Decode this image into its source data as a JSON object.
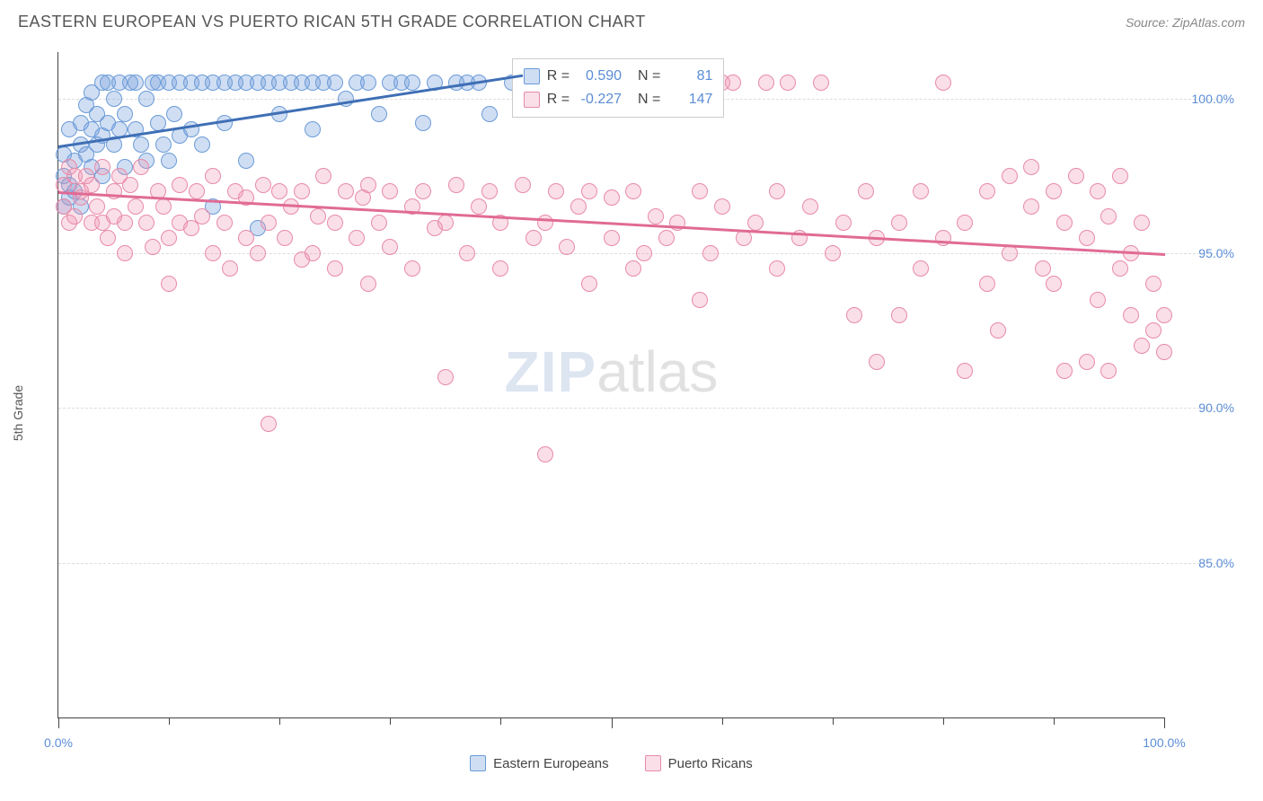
{
  "header": {
    "title": "EASTERN EUROPEAN VS PUERTO RICAN 5TH GRADE CORRELATION CHART",
    "source": "Source: ZipAtlas.com"
  },
  "ylabel": "5th Grade",
  "watermark": {
    "part1": "ZIP",
    "part2": "atlas"
  },
  "chart": {
    "type": "scatter",
    "xlim": [
      0,
      100
    ],
    "ylim": [
      80,
      101.5
    ],
    "background_color": "#ffffff",
    "grid_color": "#dddddd",
    "axis_color": "#444444",
    "label_color": "#5b8dd6",
    "yticks": [
      {
        "v": 85,
        "label": "85.0%"
      },
      {
        "v": 90,
        "label": "90.0%"
      },
      {
        "v": 95,
        "label": "95.0%"
      },
      {
        "v": 100,
        "label": "100.0%"
      }
    ],
    "xticks_major": [
      0,
      50,
      100
    ],
    "xticks_minor": [
      10,
      20,
      30,
      40,
      60,
      70,
      80,
      90
    ],
    "xlabels": [
      {
        "v": 0,
        "label": "0.0%"
      },
      {
        "v": 100,
        "label": "100.0%"
      }
    ],
    "marker_radius": 9,
    "series": [
      {
        "id": "ee",
        "name": "Eastern Europeans",
        "fill": "rgba(120,160,220,0.35)",
        "stroke": "#6a9bd8",
        "trend_color": "#3f6fb5",
        "R": "0.590",
        "N": "81",
        "trend": {
          "x1": 0,
          "y1": 98.5,
          "x2": 42,
          "y2": 100.8
        },
        "points": [
          [
            0.5,
            96.5
          ],
          [
            0.5,
            98.2
          ],
          [
            0.5,
            97.5
          ],
          [
            1,
            96.8
          ],
          [
            1,
            97.2
          ],
          [
            1,
            99.0
          ],
          [
            1.5,
            98.0
          ],
          [
            1.5,
            97.0
          ],
          [
            2,
            98.5
          ],
          [
            2,
            99.2
          ],
          [
            2,
            96.5
          ],
          [
            2.5,
            99.8
          ],
          [
            2.5,
            98.2
          ],
          [
            3,
            99.0
          ],
          [
            3,
            97.8
          ],
          [
            3,
            100.2
          ],
          [
            3.5,
            98.5
          ],
          [
            3.5,
            99.5
          ],
          [
            4,
            100.5
          ],
          [
            4,
            98.8
          ],
          [
            4,
            97.5
          ],
          [
            4.5,
            100.5
          ],
          [
            4.5,
            99.2
          ],
          [
            5,
            98.5
          ],
          [
            5,
            100.0
          ],
          [
            5.5,
            99.0
          ],
          [
            5.5,
            100.5
          ],
          [
            6,
            97.8
          ],
          [
            6,
            99.5
          ],
          [
            6.5,
            100.5
          ],
          [
            7,
            99.0
          ],
          [
            7,
            100.5
          ],
          [
            7.5,
            98.5
          ],
          [
            8,
            100.0
          ],
          [
            8,
            98.0
          ],
          [
            8.5,
            100.5
          ],
          [
            9,
            99.2
          ],
          [
            9,
            100.5
          ],
          [
            9.5,
            98.5
          ],
          [
            10,
            100.5
          ],
          [
            10,
            98.0
          ],
          [
            10.5,
            99.5
          ],
          [
            11,
            100.5
          ],
          [
            11,
            98.8
          ],
          [
            12,
            100.5
          ],
          [
            12,
            99.0
          ],
          [
            13,
            98.5
          ],
          [
            13,
            100.5
          ],
          [
            14,
            96.5
          ],
          [
            14,
            100.5
          ],
          [
            15,
            99.2
          ],
          [
            15,
            100.5
          ],
          [
            16,
            100.5
          ],
          [
            17,
            98.0
          ],
          [
            17,
            100.5
          ],
          [
            18,
            95.8
          ],
          [
            18,
            100.5
          ],
          [
            19,
            100.5
          ],
          [
            20,
            99.5
          ],
          [
            20,
            100.5
          ],
          [
            21,
            100.5
          ],
          [
            22,
            100.5
          ],
          [
            23,
            99.0
          ],
          [
            23,
            100.5
          ],
          [
            24,
            100.5
          ],
          [
            25,
            100.5
          ],
          [
            26,
            100.0
          ],
          [
            27,
            100.5
          ],
          [
            28,
            100.5
          ],
          [
            29,
            99.5
          ],
          [
            30,
            100.5
          ],
          [
            31,
            100.5
          ],
          [
            32,
            100.5
          ],
          [
            33,
            99.2
          ],
          [
            34,
            100.5
          ],
          [
            36,
            100.5
          ],
          [
            37,
            100.5
          ],
          [
            38,
            100.5
          ],
          [
            39,
            99.5
          ],
          [
            41,
            100.5
          ],
          [
            42,
            100.5
          ]
        ]
      },
      {
        "id": "pr",
        "name": "Puerto Ricans",
        "fill": "rgba(240,150,180,0.30)",
        "stroke": "#e88aa8",
        "trend_color": "#e06b95",
        "R": "-0.227",
        "N": "147",
        "trend": {
          "x1": 0,
          "y1": 97.0,
          "x2": 100,
          "y2": 95.0
        },
        "points": [
          [
            0.5,
            97.2
          ],
          [
            0.5,
            96.5
          ],
          [
            1,
            97.8
          ],
          [
            1,
            96.0
          ],
          [
            1.5,
            97.5
          ],
          [
            1.5,
            96.2
          ],
          [
            2,
            97.0
          ],
          [
            2,
            96.8
          ],
          [
            2.5,
            97.5
          ],
          [
            3,
            96.0
          ],
          [
            3,
            97.2
          ],
          [
            3.5,
            96.5
          ],
          [
            4,
            97.8
          ],
          [
            4,
            96.0
          ],
          [
            4.5,
            95.5
          ],
          [
            5,
            97.0
          ],
          [
            5,
            96.2
          ],
          [
            5.5,
            97.5
          ],
          [
            6,
            96.0
          ],
          [
            6,
            95.0
          ],
          [
            6.5,
            97.2
          ],
          [
            7,
            96.5
          ],
          [
            7.5,
            97.8
          ],
          [
            8,
            96.0
          ],
          [
            8.5,
            95.2
          ],
          [
            9,
            97.0
          ],
          [
            9.5,
            96.5
          ],
          [
            10,
            95.5
          ],
          [
            10,
            94.0
          ],
          [
            11,
            97.2
          ],
          [
            11,
            96.0
          ],
          [
            12,
            95.8
          ],
          [
            12.5,
            97.0
          ],
          [
            13,
            96.2
          ],
          [
            14,
            95.0
          ],
          [
            14,
            97.5
          ],
          [
            15,
            96.0
          ],
          [
            15.5,
            94.5
          ],
          [
            16,
            97.0
          ],
          [
            17,
            95.5
          ],
          [
            17,
            96.8
          ],
          [
            18,
            95.0
          ],
          [
            18.5,
            97.2
          ],
          [
            19,
            89.5
          ],
          [
            19,
            96.0
          ],
          [
            20,
            97.0
          ],
          [
            20.5,
            95.5
          ],
          [
            21,
            96.5
          ],
          [
            22,
            94.8
          ],
          [
            22,
            97.0
          ],
          [
            23,
            95.0
          ],
          [
            23.5,
            96.2
          ],
          [
            24,
            97.5
          ],
          [
            25,
            94.5
          ],
          [
            25,
            96.0
          ],
          [
            26,
            97.0
          ],
          [
            27,
            95.5
          ],
          [
            27.5,
            96.8
          ],
          [
            28,
            94.0
          ],
          [
            28,
            97.2
          ],
          [
            29,
            96.0
          ],
          [
            30,
            95.2
          ],
          [
            30,
            97.0
          ],
          [
            32,
            96.5
          ],
          [
            32,
            94.5
          ],
          [
            33,
            97.0
          ],
          [
            34,
            95.8
          ],
          [
            35,
            91.0
          ],
          [
            35,
            96.0
          ],
          [
            36,
            97.2
          ],
          [
            37,
            95.0
          ],
          [
            38,
            96.5
          ],
          [
            39,
            97.0
          ],
          [
            40,
            94.5
          ],
          [
            40,
            96.0
          ],
          [
            42,
            97.2
          ],
          [
            43,
            95.5
          ],
          [
            44,
            88.5
          ],
          [
            44,
            96.0
          ],
          [
            45,
            97.0
          ],
          [
            46,
            95.2
          ],
          [
            47,
            96.5
          ],
          [
            48,
            94.0
          ],
          [
            48,
            97.0
          ],
          [
            50,
            95.5
          ],
          [
            50,
            96.8
          ],
          [
            52,
            94.5
          ],
          [
            52,
            97.0
          ],
          [
            53,
            95.0
          ],
          [
            54,
            96.2
          ],
          [
            55,
            100.5
          ],
          [
            55,
            95.5
          ],
          [
            56,
            96.0
          ],
          [
            58,
            97.0
          ],
          [
            58,
            93.5
          ],
          [
            59,
            95.0
          ],
          [
            60,
            96.5
          ],
          [
            60,
            100.5
          ],
          [
            61,
            100.5
          ],
          [
            62,
            95.5
          ],
          [
            63,
            96.0
          ],
          [
            64,
            100.5
          ],
          [
            65,
            94.5
          ],
          [
            65,
            97.0
          ],
          [
            66,
            100.5
          ],
          [
            67,
            95.5
          ],
          [
            68,
            96.5
          ],
          [
            69,
            100.5
          ],
          [
            70,
            95.0
          ],
          [
            71,
            96.0
          ],
          [
            72,
            93.0
          ],
          [
            73,
            97.0
          ],
          [
            74,
            91.5
          ],
          [
            74,
            95.5
          ],
          [
            76,
            93.0
          ],
          [
            76,
            96.0
          ],
          [
            78,
            97.0
          ],
          [
            78,
            94.5
          ],
          [
            80,
            95.5
          ],
          [
            80,
            100.5
          ],
          [
            82,
            96.0
          ],
          [
            82,
            91.2
          ],
          [
            84,
            94.0
          ],
          [
            84,
            97.0
          ],
          [
            85,
            92.5
          ],
          [
            86,
            97.5
          ],
          [
            86,
            95.0
          ],
          [
            88,
            96.5
          ],
          [
            88,
            97.8
          ],
          [
            89,
            94.5
          ],
          [
            90,
            97.0
          ],
          [
            90,
            94.0
          ],
          [
            91,
            96.0
          ],
          [
            91,
            91.2
          ],
          [
            92,
            97.5
          ],
          [
            93,
            95.5
          ],
          [
            93,
            91.5
          ],
          [
            94,
            97.0
          ],
          [
            94,
            93.5
          ],
          [
            95,
            96.2
          ],
          [
            95,
            91.2
          ],
          [
            96,
            97.5
          ],
          [
            96,
            94.5
          ],
          [
            97,
            95.0
          ],
          [
            97,
            93.0
          ],
          [
            98,
            96.0
          ],
          [
            98,
            92.0
          ],
          [
            99,
            94.0
          ],
          [
            99,
            92.5
          ],
          [
            100,
            93.0
          ],
          [
            100,
            91.8
          ]
        ]
      }
    ],
    "stats_box": {
      "left_pct": 41,
      "top_pct": 1
    }
  },
  "legend": {
    "items": [
      {
        "series": "ee"
      },
      {
        "series": "pr"
      }
    ]
  }
}
